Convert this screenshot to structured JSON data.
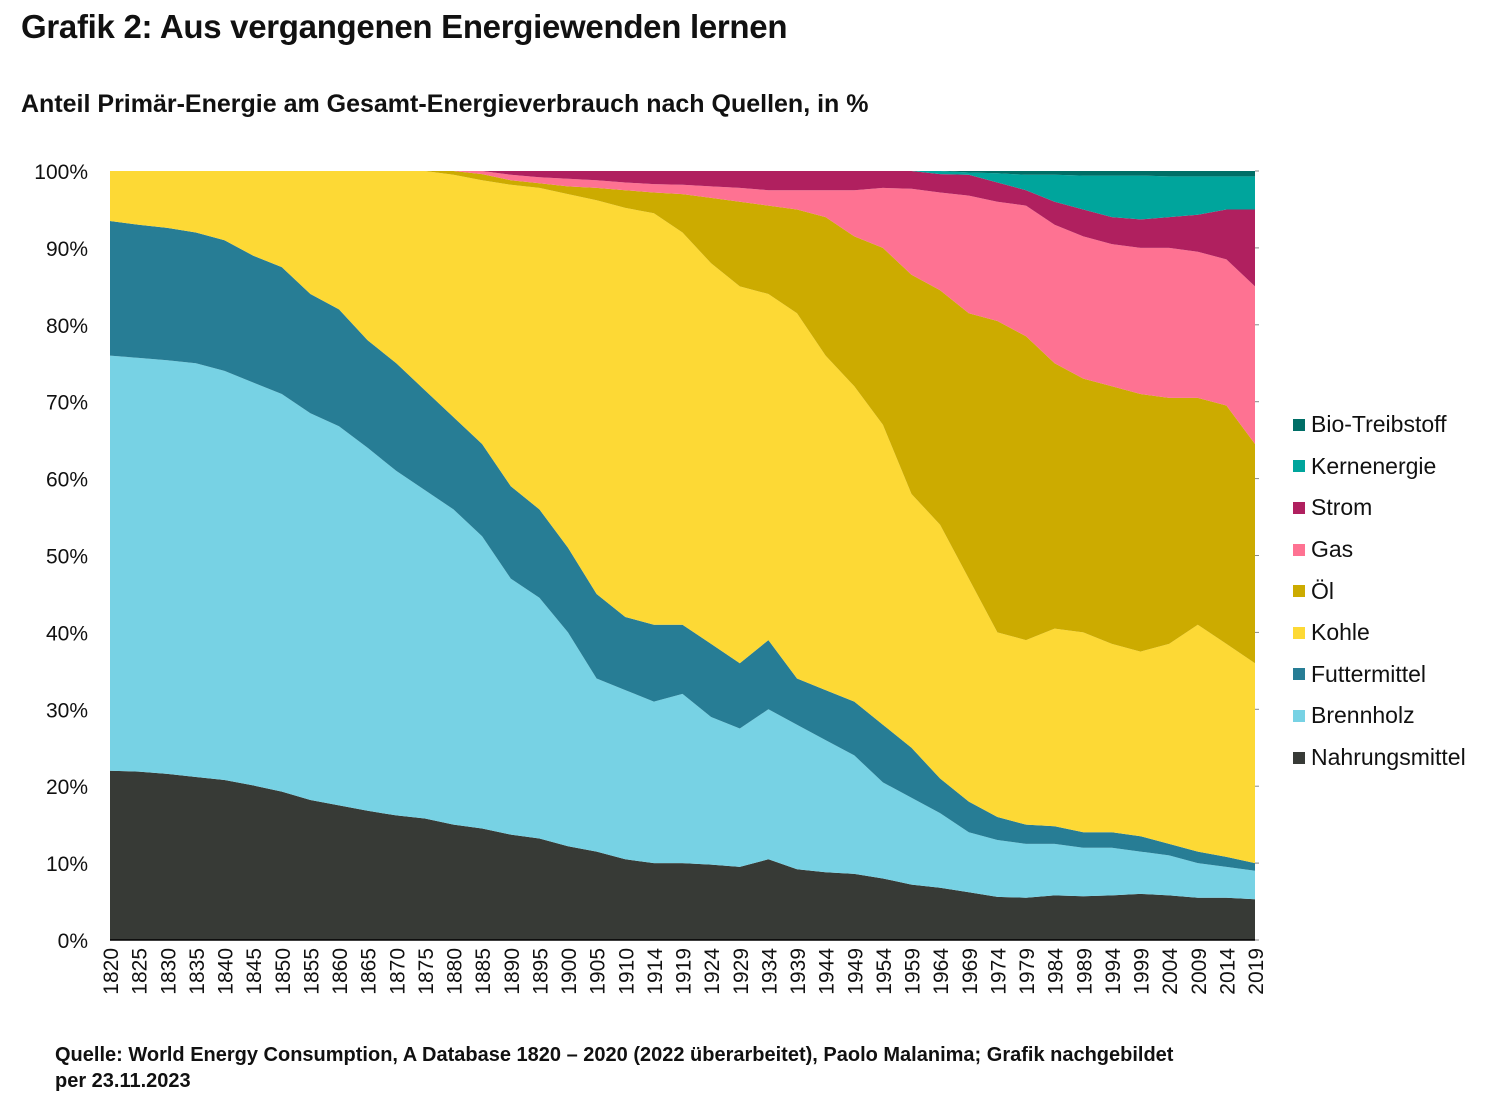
{
  "title": "Grafik 2: Aus vergangenen Energiewenden lernen",
  "subtitle": "Anteil Primär-Energie am Gesamt-Energieverbrauch nach Quellen, in %",
  "source": "Quelle: World Energy Consumption, A Database 1820 – 2020 (2022 überarbeitet), Paolo Malanima; Grafik nachgebildet per 23.11.2023",
  "chart_data": {
    "type": "area",
    "stacked": true,
    "title": "Anteil Primär-Energie am Gesamt-Energieverbrauch nach Quellen, in %",
    "xlabel": "",
    "ylabel": "",
    "ylim": [
      0,
      100
    ],
    "y_ticks": [
      "0%",
      "10%",
      "20%",
      "30%",
      "40%",
      "50%",
      "60%",
      "70%",
      "80%",
      "90%",
      "100%"
    ],
    "grid": false,
    "legend_position": "right",
    "categories": [
      "1820",
      "1825",
      "1830",
      "1835",
      "1840",
      "1845",
      "1850",
      "1855",
      "1860",
      "1865",
      "1870",
      "1875",
      "1880",
      "1885",
      "1890",
      "1895",
      "1900",
      "1905",
      "1910",
      "1914",
      "1919",
      "1924",
      "1929",
      "1934",
      "1939",
      "1944",
      "1949",
      "1954",
      "1959",
      "1964",
      "1969",
      "1974",
      "1979",
      "1984",
      "1989",
      "1994",
      "1999",
      "2004",
      "2009",
      "2014",
      "2019"
    ],
    "series": [
      {
        "name": "Nahrungsmittel",
        "color": "#373a36",
        "values": [
          22,
          21.9,
          21.6,
          21.2,
          20.8,
          20.1,
          19.3,
          18.2,
          17.5,
          16.8,
          16.2,
          15.8,
          15,
          14.5,
          13.7,
          13.2,
          12.2,
          11.5,
          10.5,
          10,
          10,
          9.8,
          9.5,
          10.5,
          9.2,
          8.8,
          8.6,
          8,
          7.2,
          6.8,
          6.2,
          5.6,
          5.5,
          5.8,
          5.7,
          5.8,
          6,
          5.8,
          5.5,
          5.5,
          5.3
        ]
      },
      {
        "name": "Brennholz",
        "color": "#77d2e4",
        "values": [
          54,
          53.8,
          53.8,
          53.8,
          53.2,
          52.4,
          51.7,
          50.3,
          49.3,
          47.2,
          44.8,
          42.7,
          41,
          38,
          33.3,
          31.3,
          27.8,
          22.5,
          22,
          21,
          22,
          19.2,
          18,
          19.5,
          18.8,
          17.2,
          15.4,
          12.5,
          11.3,
          9.7,
          7.8,
          7.4,
          7,
          6.7,
          6.3,
          6.2,
          5.5,
          5.2,
          4.5,
          4,
          3.7
        ]
      },
      {
        "name": "Futtermittel",
        "color": "#277d95",
        "values": [
          17.5,
          17.3,
          17.2,
          17,
          17,
          16.5,
          16.5,
          15.5,
          15.2,
          14,
          14,
          13,
          12,
          12,
          12,
          11.5,
          11,
          11,
          9.5,
          10,
          9,
          9.5,
          8.5,
          9,
          6,
          6.5,
          7,
          7.5,
          6.5,
          4.5,
          4,
          3,
          2.5,
          2.3,
          2,
          2,
          2,
          1.5,
          1.5,
          1.3,
          1
        ]
      },
      {
        "name": "Kohle",
        "color": "#fdd935",
        "values": [
          6.5,
          7,
          7.4,
          8,
          9,
          11,
          12.5,
          16,
          18,
          22,
          25,
          28.5,
          31.5,
          34.3,
          39.2,
          41.8,
          46,
          51.2,
          53.2,
          53.5,
          51,
          49.5,
          49,
          45,
          47.5,
          43.5,
          41,
          39,
          33,
          33,
          29,
          24,
          24,
          25.7,
          26,
          24.5,
          24,
          26,
          29.5,
          27.7,
          26
        ]
      },
      {
        "name": "Öl",
        "color": "#ccab00",
        "values": [
          0,
          0,
          0,
          0,
          0,
          0,
          0,
          0,
          0,
          0,
          0,
          0,
          0.5,
          0.8,
          0.6,
          0.6,
          1,
          1.6,
          2.3,
          2.7,
          5,
          8.5,
          11,
          11.5,
          13.5,
          18,
          19.5,
          23,
          28.5,
          30.5,
          34.5,
          40.5,
          39.5,
          34.5,
          33,
          33.5,
          33.5,
          32,
          29.5,
          31,
          28.5
        ]
      },
      {
        "name": "Gas",
        "color": "#fe7292",
        "values": [
          0,
          0,
          0,
          0,
          0,
          0,
          0,
          0,
          0,
          0,
          0,
          0,
          0,
          0.4,
          0.7,
          0.8,
          1,
          1,
          1,
          1.1,
          1.2,
          1.5,
          1.8,
          2,
          2.5,
          3.5,
          6,
          7.8,
          11.2,
          12.7,
          15.3,
          15.5,
          17,
          18,
          18.5,
          18.5,
          19,
          19.5,
          19,
          19,
          20.5
        ]
      },
      {
        "name": "Strom",
        "color": "#b0205f",
        "values": [
          0,
          0,
          0,
          0,
          0,
          0,
          0,
          0,
          0,
          0,
          0,
          0,
          0,
          0,
          0.5,
          0.8,
          1,
          1.2,
          1.5,
          1.7,
          1.8,
          2,
          2.2,
          2.5,
          2.5,
          2.5,
          2.5,
          2.2,
          2.3,
          2.4,
          2.7,
          2.5,
          2,
          3,
          3.5,
          3.5,
          3.7,
          4,
          4.8,
          6.5,
          10
        ]
      },
      {
        "name": "Kernenergie",
        "color": "#00a59c",
        "values": [
          0,
          0,
          0,
          0,
          0,
          0,
          0,
          0,
          0,
          0,
          0,
          0,
          0,
          0,
          0,
          0,
          0,
          0,
          0,
          0,
          0,
          0,
          0,
          0,
          0,
          0,
          0,
          0,
          0,
          0.4,
          0.3,
          1.2,
          2,
          3.5,
          4.4,
          5.4,
          5.7,
          5.3,
          5,
          4.3,
          4.3
        ]
      },
      {
        "name": "Bio-Treibstoff",
        "color": "#006e66",
        "values": [
          0,
          0,
          0,
          0,
          0,
          0,
          0,
          0,
          0,
          0,
          0,
          0,
          0,
          0,
          0,
          0,
          0,
          0,
          0,
          0,
          0,
          0,
          0,
          0,
          0,
          0,
          0,
          0,
          0,
          0,
          0.2,
          0.3,
          0.5,
          0.5,
          0.6,
          0.6,
          0.6,
          0.7,
          0.7,
          0.7,
          0.7
        ]
      }
    ]
  }
}
